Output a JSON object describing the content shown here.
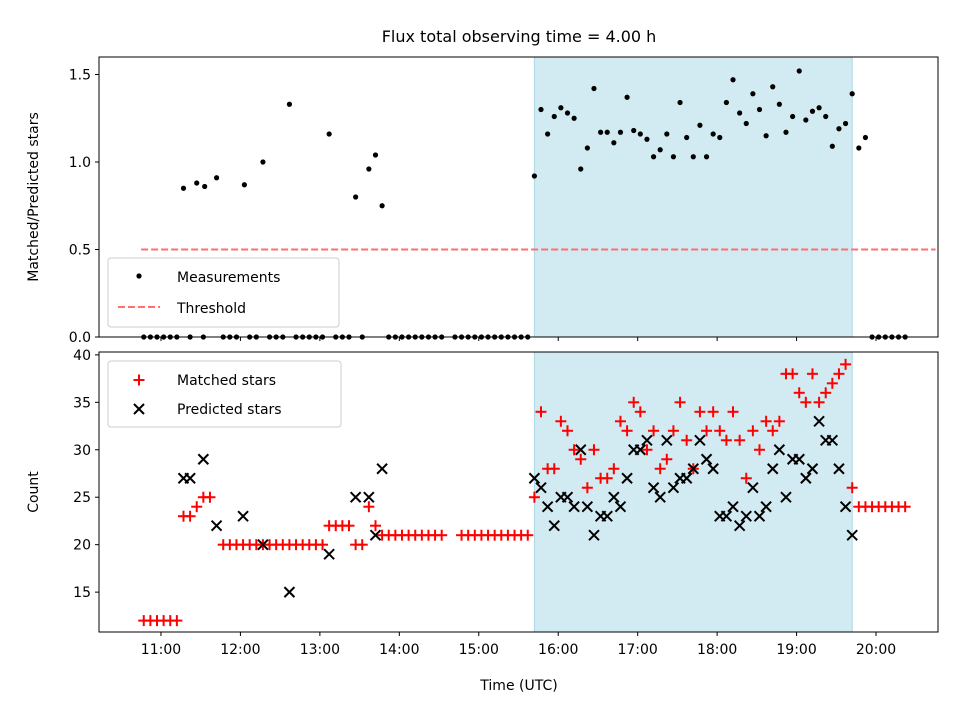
{
  "figure": {
    "title": "Flux total observing time = 4.00 h",
    "xlabel": "Time (UTC)"
  },
  "colors": {
    "measurement": "#000000",
    "threshold": "#ff7070",
    "matched": "#ff0000",
    "predicted": "#000000",
    "shade": "#add8e6"
  },
  "chart_data": [
    {
      "type": "scatter",
      "ylabel": "Matched/Predicted stars",
      "ylim": [
        0,
        1.6
      ],
      "yticks": [
        0.0,
        0.5,
        1.0,
        1.5
      ],
      "ytick_labels": [
        "0.0",
        "0.5",
        "1.0",
        "1.5"
      ],
      "xlim_hours": [
        10.22,
        20.78
      ],
      "shaded_interval": [
        "15:42",
        "19:42"
      ],
      "legend_position": "lower-left",
      "threshold": {
        "name": "Threshold",
        "value": 0.5,
        "x_range": [
          "10:45",
          "20:45"
        ]
      },
      "series": [
        {
          "name": "Measurements",
          "points": [
            [
              "11:17",
              0.85
            ],
            [
              "11:27",
              0.88
            ],
            [
              "11:33",
              0.86
            ],
            [
              "11:42",
              0.91
            ],
            [
              "12:03",
              0.87
            ],
            [
              "12:17",
              1.0
            ],
            [
              "12:37",
              1.33
            ],
            [
              "13:07",
              1.16
            ],
            [
              "13:27",
              0.8
            ],
            [
              "13:37",
              0.96
            ],
            [
              "13:42",
              1.04
            ],
            [
              "13:47",
              0.75
            ],
            [
              "15:42",
              0.92
            ],
            [
              "15:47",
              1.3
            ],
            [
              "15:52",
              1.16
            ],
            [
              "15:57",
              1.26
            ],
            [
              "16:02",
              1.31
            ],
            [
              "16:07",
              1.28
            ],
            [
              "16:12",
              1.25
            ],
            [
              "16:17",
              0.96
            ],
            [
              "16:22",
              1.08
            ],
            [
              "16:27",
              1.42
            ],
            [
              "16:32",
              1.17
            ],
            [
              "16:37",
              1.17
            ],
            [
              "16:42",
              1.11
            ],
            [
              "16:47",
              1.17
            ],
            [
              "16:52",
              1.37
            ],
            [
              "16:57",
              1.18
            ],
            [
              "17:02",
              1.16
            ],
            [
              "17:07",
              1.13
            ],
            [
              "17:12",
              1.03
            ],
            [
              "17:17",
              1.07
            ],
            [
              "17:22",
              1.16
            ],
            [
              "17:27",
              1.03
            ],
            [
              "17:32",
              1.34
            ],
            [
              "17:37",
              1.14
            ],
            [
              "17:42",
              1.03
            ],
            [
              "17:47",
              1.21
            ],
            [
              "17:52",
              1.03
            ],
            [
              "17:57",
              1.16
            ],
            [
              "18:02",
              1.14
            ],
            [
              "18:07",
              1.34
            ],
            [
              "18:12",
              1.47
            ],
            [
              "18:17",
              1.28
            ],
            [
              "18:22",
              1.22
            ],
            [
              "18:27",
              1.39
            ],
            [
              "18:32",
              1.3
            ],
            [
              "18:37",
              1.15
            ],
            [
              "18:42",
              1.43
            ],
            [
              "18:47",
              1.33
            ],
            [
              "18:52",
              1.17
            ],
            [
              "18:57",
              1.26
            ],
            [
              "19:02",
              1.52
            ],
            [
              "19:07",
              1.24
            ],
            [
              "19:12",
              1.29
            ],
            [
              "19:17",
              1.31
            ],
            [
              "19:22",
              1.26
            ],
            [
              "19:27",
              1.09
            ],
            [
              "19:32",
              1.19
            ],
            [
              "19:37",
              1.22
            ],
            [
              "19:42",
              1.39
            ],
            [
              "19:47",
              1.08
            ],
            [
              "19:52",
              1.14
            ]
          ],
          "zero_times": [
            "10:47",
            "10:52",
            "10:57",
            "11:02",
            "11:07",
            "11:12",
            "11:22",
            "11:32",
            "11:47",
            "11:52",
            "11:57",
            "12:07",
            "12:12",
            "12:22",
            "12:27",
            "12:32",
            "12:42",
            "12:47",
            "12:52",
            "12:57",
            "13:02",
            "13:12",
            "13:17",
            "13:22",
            "13:32",
            "13:52",
            "13:57",
            "14:02",
            "14:07",
            "14:12",
            "14:17",
            "14:22",
            "14:27",
            "14:32",
            "14:42",
            "14:47",
            "14:52",
            "14:57",
            "15:02",
            "15:07",
            "15:12",
            "15:17",
            "15:22",
            "15:27",
            "15:32",
            "15:37",
            "19:57",
            "20:02",
            "20:07",
            "20:12",
            "20:17",
            "20:22"
          ]
        }
      ]
    },
    {
      "type": "scatter",
      "ylabel": "Count",
      "ylim": [
        10.8,
        40.3
      ],
      "yticks": [
        15,
        20,
        25,
        30,
        35,
        40
      ],
      "ytick_labels": [
        "15",
        "20",
        "25",
        "30",
        "35",
        "40"
      ],
      "xticks": [
        "11:00",
        "12:00",
        "13:00",
        "14:00",
        "15:00",
        "16:00",
        "17:00",
        "18:00",
        "19:00",
        "20:00"
      ],
      "xlim_hours": [
        10.22,
        20.78
      ],
      "shaded_interval": [
        "15:42",
        "19:42"
      ],
      "legend_position": "upper-left",
      "series": [
        {
          "name": "Matched stars",
          "marker": "plus",
          "points": [
            [
              "10:47",
              12
            ],
            [
              "10:52",
              12
            ],
            [
              "10:57",
              12
            ],
            [
              "11:02",
              12
            ],
            [
              "11:07",
              12
            ],
            [
              "11:12",
              12
            ],
            [
              "11:17",
              23
            ],
            [
              "11:22",
              23
            ],
            [
              "11:27",
              24
            ],
            [
              "11:32",
              25
            ],
            [
              "11:37",
              25
            ],
            [
              "11:47",
              20
            ],
            [
              "11:52",
              20
            ],
            [
              "11:57",
              20
            ],
            [
              "12:02",
              20
            ],
            [
              "12:07",
              20
            ],
            [
              "12:12",
              20
            ],
            [
              "12:17",
              20
            ],
            [
              "12:22",
              20
            ],
            [
              "12:27",
              20
            ],
            [
              "12:32",
              20
            ],
            [
              "12:37",
              20
            ],
            [
              "12:42",
              20
            ],
            [
              "12:47",
              20
            ],
            [
              "12:52",
              20
            ],
            [
              "12:57",
              20
            ],
            [
              "13:02",
              20
            ],
            [
              "13:07",
              22
            ],
            [
              "13:12",
              22
            ],
            [
              "13:17",
              22
            ],
            [
              "13:22",
              22
            ],
            [
              "13:27",
              20
            ],
            [
              "13:32",
              20
            ],
            [
              "13:37",
              24
            ],
            [
              "13:42",
              22
            ],
            [
              "13:47",
              21
            ],
            [
              "13:52",
              21
            ],
            [
              "13:57",
              21
            ],
            [
              "14:02",
              21
            ],
            [
              "14:07",
              21
            ],
            [
              "14:12",
              21
            ],
            [
              "14:17",
              21
            ],
            [
              "14:22",
              21
            ],
            [
              "14:27",
              21
            ],
            [
              "14:32",
              21
            ],
            [
              "14:47",
              21
            ],
            [
              "14:52",
              21
            ],
            [
              "14:57",
              21
            ],
            [
              "15:02",
              21
            ],
            [
              "15:07",
              21
            ],
            [
              "15:12",
              21
            ],
            [
              "15:17",
              21
            ],
            [
              "15:22",
              21
            ],
            [
              "15:27",
              21
            ],
            [
              "15:32",
              21
            ],
            [
              "15:37",
              21
            ],
            [
              "15:42",
              25
            ],
            [
              "15:47",
              34
            ],
            [
              "15:52",
              28
            ],
            [
              "15:57",
              28
            ],
            [
              "16:02",
              33
            ],
            [
              "16:07",
              32
            ],
            [
              "16:12",
              30
            ],
            [
              "16:17",
              29
            ],
            [
              "16:22",
              26
            ],
            [
              "16:27",
              30
            ],
            [
              "16:32",
              27
            ],
            [
              "16:37",
              27
            ],
            [
              "16:42",
              28
            ],
            [
              "16:47",
              33
            ],
            [
              "16:52",
              32
            ],
            [
              "16:57",
              35
            ],
            [
              "17:02",
              34
            ],
            [
              "17:07",
              30
            ],
            [
              "17:12",
              32
            ],
            [
              "17:17",
              28
            ],
            [
              "17:22",
              29
            ],
            [
              "17:27",
              32
            ],
            [
              "17:32",
              35
            ],
            [
              "17:37",
              31
            ],
            [
              "17:42",
              28
            ],
            [
              "17:47",
              34
            ],
            [
              "17:52",
              32
            ],
            [
              "17:57",
              34
            ],
            [
              "18:02",
              32
            ],
            [
              "18:07",
              31
            ],
            [
              "18:12",
              34
            ],
            [
              "18:17",
              31
            ],
            [
              "18:22",
              27
            ],
            [
              "18:27",
              32
            ],
            [
              "18:32",
              30
            ],
            [
              "18:37",
              33
            ],
            [
              "18:42",
              32
            ],
            [
              "18:47",
              33
            ],
            [
              "18:52",
              38
            ],
            [
              "18:57",
              38
            ],
            [
              "19:02",
              36
            ],
            [
              "19:07",
              35
            ],
            [
              "19:12",
              38
            ],
            [
              "19:17",
              35
            ],
            [
              "19:22",
              36
            ],
            [
              "19:27",
              37
            ],
            [
              "19:32",
              38
            ],
            [
              "19:37",
              39
            ],
            [
              "19:42",
              26
            ],
            [
              "19:47",
              24
            ],
            [
              "19:52",
              24
            ],
            [
              "19:57",
              24
            ],
            [
              "20:02",
              24
            ],
            [
              "20:07",
              24
            ],
            [
              "20:12",
              24
            ],
            [
              "20:17",
              24
            ],
            [
              "20:22",
              24
            ]
          ]
        },
        {
          "name": "Predicted stars",
          "marker": "x",
          "points": [
            [
              "11:17",
              27
            ],
            [
              "11:22",
              27
            ],
            [
              "11:32",
              29
            ],
            [
              "11:42",
              22
            ],
            [
              "12:02",
              23
            ],
            [
              "12:17",
              20
            ],
            [
              "12:37",
              15
            ],
            [
              "13:07",
              19
            ],
            [
              "13:27",
              25
            ],
            [
              "13:37",
              25
            ],
            [
              "13:42",
              21
            ],
            [
              "13:47",
              28
            ],
            [
              "15:42",
              27
            ],
            [
              "15:47",
              26
            ],
            [
              "15:52",
              24
            ],
            [
              "15:57",
              22
            ],
            [
              "16:02",
              25
            ],
            [
              "16:07",
              25
            ],
            [
              "16:12",
              24
            ],
            [
              "16:17",
              30
            ],
            [
              "16:22",
              24
            ],
            [
              "16:27",
              21
            ],
            [
              "16:32",
              23
            ],
            [
              "16:37",
              23
            ],
            [
              "16:42",
              25
            ],
            [
              "16:47",
              24
            ],
            [
              "16:52",
              27
            ],
            [
              "16:57",
              30
            ],
            [
              "17:02",
              30
            ],
            [
              "17:07",
              31
            ],
            [
              "17:12",
              26
            ],
            [
              "17:17",
              25
            ],
            [
              "17:22",
              31
            ],
            [
              "17:27",
              26
            ],
            [
              "17:32",
              27
            ],
            [
              "17:37",
              27
            ],
            [
              "17:42",
              28
            ],
            [
              "17:47",
              31
            ],
            [
              "17:52",
              29
            ],
            [
              "17:57",
              28
            ],
            [
              "18:02",
              23
            ],
            [
              "18:07",
              23
            ],
            [
              "18:12",
              24
            ],
            [
              "18:17",
              22
            ],
            [
              "18:22",
              23
            ],
            [
              "18:27",
              26
            ],
            [
              "18:32",
              23
            ],
            [
              "18:37",
              24
            ],
            [
              "18:42",
              28
            ],
            [
              "18:47",
              30
            ],
            [
              "18:52",
              25
            ],
            [
              "18:57",
              29
            ],
            [
              "19:02",
              29
            ],
            [
              "19:07",
              27
            ],
            [
              "19:12",
              28
            ],
            [
              "19:17",
              33
            ],
            [
              "19:22",
              31
            ],
            [
              "19:27",
              31
            ],
            [
              "19:32",
              28
            ],
            [
              "19:37",
              24
            ],
            [
              "19:42",
              21
            ]
          ]
        }
      ]
    }
  ]
}
